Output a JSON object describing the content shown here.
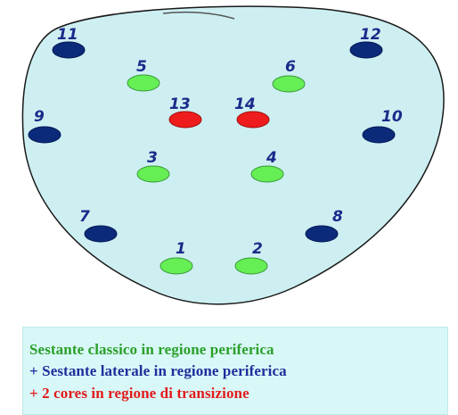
{
  "colors": {
    "organ_fill": "#cdeff2",
    "organ_stroke": "#1a1a1a",
    "lateral_core": "#0b2a7a",
    "classic_core": "#66ee55",
    "transition_core": "#ee1c1c",
    "label": "#1a2a8a",
    "legend_bg": "#d8f7f7",
    "legend_green": "#2aa02a",
    "legend_blue": "#1c2f9c",
    "legend_red": "#e21b1b"
  },
  "diagram": {
    "cores": [
      {
        "id": "11",
        "type": "lateral"
      },
      {
        "id": "12",
        "type": "lateral"
      },
      {
        "id": "5",
        "type": "classic"
      },
      {
        "id": "6",
        "type": "classic"
      },
      {
        "id": "13",
        "type": "transition"
      },
      {
        "id": "14",
        "type": "transition"
      },
      {
        "id": "9",
        "type": "lateral"
      },
      {
        "id": "10",
        "type": "lateral"
      },
      {
        "id": "3",
        "type": "classic"
      },
      {
        "id": "4",
        "type": "classic"
      },
      {
        "id": "7",
        "type": "lateral"
      },
      {
        "id": "8",
        "type": "lateral"
      },
      {
        "id": "1",
        "type": "classic"
      },
      {
        "id": "2",
        "type": "classic"
      }
    ]
  },
  "legend": {
    "line1": "Sestante classico in regione periferica",
    "line2": "+ Sestante laterale in regione periferica",
    "line3": "+ 2 cores in regione di transizione"
  }
}
